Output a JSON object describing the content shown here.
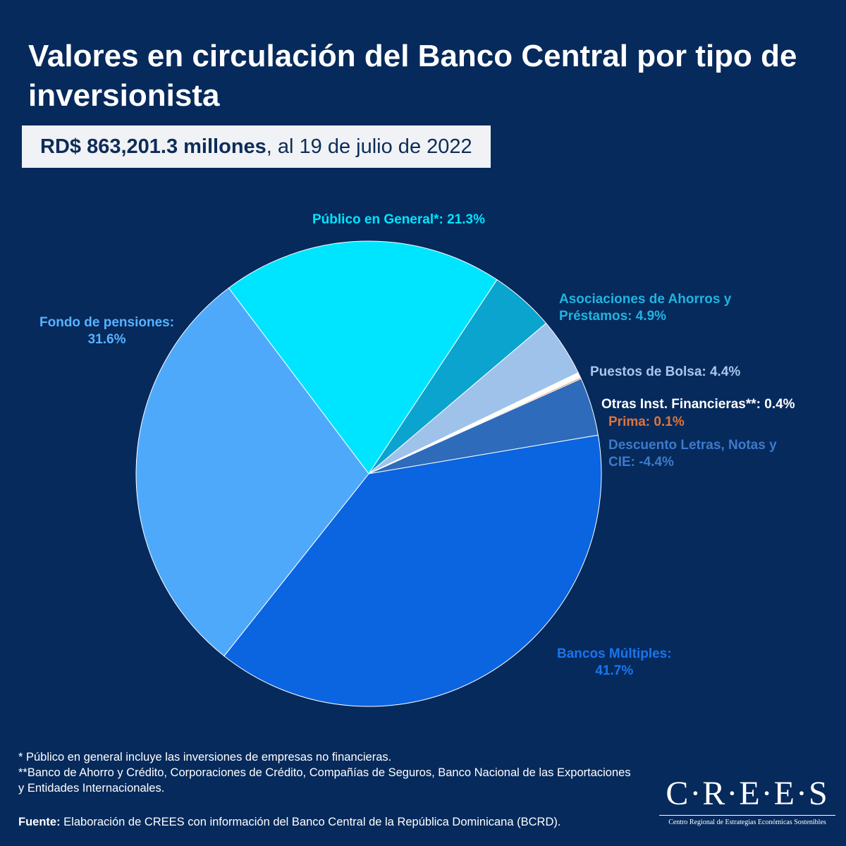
{
  "header": {
    "title": "Valores en circulación del Banco Central por tipo de inversionista",
    "subtitle_amount": "RD$ 863,201.3 millones",
    "subtitle_date": ", al 19 de julio de 2022"
  },
  "chart_data": {
    "type": "pie",
    "title": "Valores en circulación del Banco Central por tipo de inversionista",
    "subtitle": "RD$ 863,201.3 millones, al 19 de julio de 2022",
    "slices": [
      {
        "name": "Público en General*",
        "value": 21.3,
        "label": "Público en General*: 21.3%",
        "color": "#00e5ff",
        "label_color": "#00e5ff"
      },
      {
        "name": "Asociaciones de Ahorros y Préstamos",
        "value": 4.9,
        "label_line1": "Asociaciones de Ahorros y",
        "label_line2": "Préstamos: 4.9%",
        "color": "#0aa4cf",
        "label_color": "#20b4e0"
      },
      {
        "name": "Puestos de Bolsa",
        "value": 4.4,
        "label": "Puestos de Bolsa: 4.4%",
        "color": "#9fc2ea",
        "label_color": "#a9c7ec"
      },
      {
        "name": "Otras Inst. Financieras**",
        "value": 0.4,
        "label": "Otras Inst. Financieras**: 0.4%",
        "color": "#ffffff",
        "label_color": "#ffffff"
      },
      {
        "name": "Prima",
        "value": 0.1,
        "label": "Prima: 0.1%",
        "color": "#e0743a",
        "label_color": "#e0743a"
      },
      {
        "name": "Descuento Letras, Notas y CIE",
        "value": -4.4,
        "label_line1": "Descuento Letras, Notas y",
        "label_line2": "CIE: -4.4%",
        "color": "#2e6bbb",
        "label_color": "#3d7acb"
      },
      {
        "name": "Bancos Múltiples",
        "value": 41.7,
        "label_line1": "Bancos Múltiples:",
        "label_line2": "41.7%",
        "color": "#0b64e0",
        "label_color": "#1a74f0"
      },
      {
        "name": "Fondo de pensiones",
        "value": 31.6,
        "label_line1": "Fondo de pensiones:",
        "label_line2": "31.6%",
        "color": "#4fa9fb",
        "label_color": "#59b2ff"
      }
    ]
  },
  "footnotes": {
    "note1": "* Público en general incluye las inversiones de empresas no financieras.",
    "note2": "**Banco de Ahorro y Crédito, Corporaciones de Crédito, Compañías de Seguros, Banco Nacional de las Exportaciones y Entidades Internacionales."
  },
  "source": {
    "label": "Fuente:",
    "text": " Elaboración de CREES con información del Banco Central de la República Dominicana (BCRD)."
  },
  "logo": {
    "word": "C·R·E·E·S",
    "subtitle": "Centro Regional de Estrategias Económicas Sostenibles"
  }
}
